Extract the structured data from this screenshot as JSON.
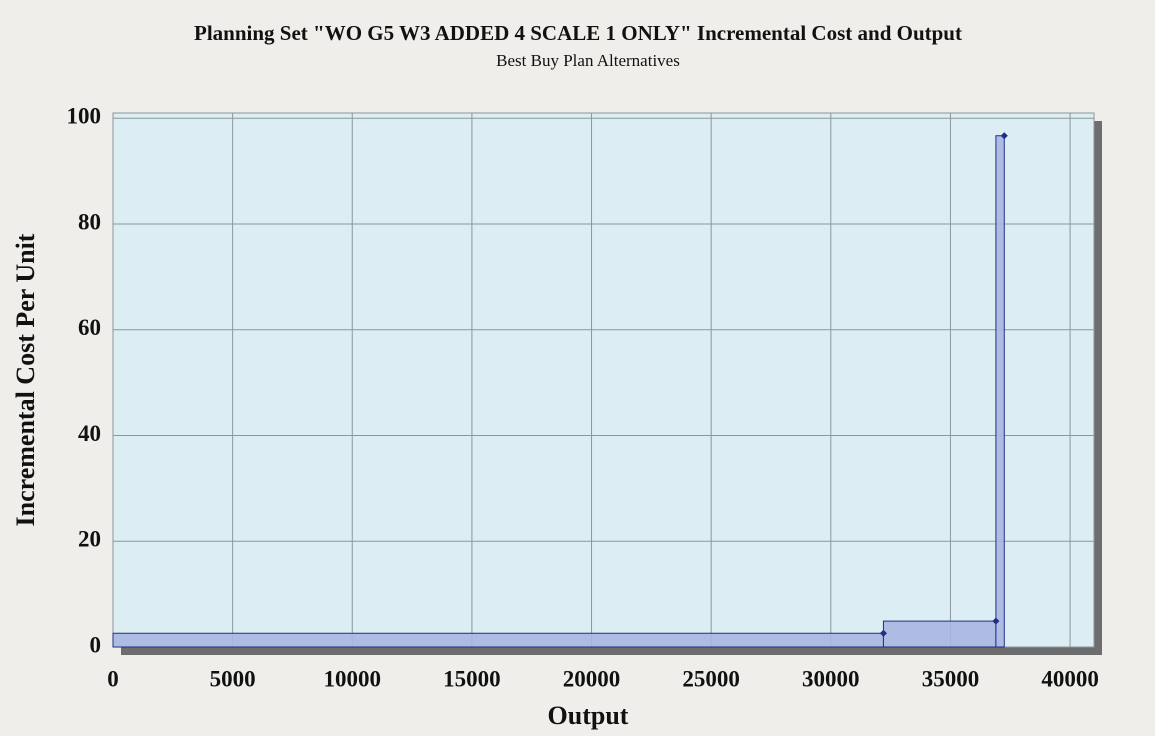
{
  "chart_data": {
    "type": "histogram",
    "title": "Planning Set \"WO G5 W3 ADDED 4 SCALE 1 ONLY\" Incremental Cost and Output",
    "subtitle": "Best Buy Plan Alternatives",
    "x_label": "Output",
    "y_label": "Incremental Cost Per Unit",
    "bins": [
      0,
      32200,
      36900,
      37250
    ],
    "values": [
      2.6,
      4.9,
      96.7
    ],
    "color": "#a8b6e2",
    "edge_color": "#1f2f86",
    "xlim": [
      0,
      41000
    ],
    "ylim": [
      0,
      101
    ],
    "xticks": [
      0,
      5000,
      10000,
      15000,
      20000,
      25000,
      30000,
      35000,
      40000
    ],
    "yticks": [
      0,
      20,
      40,
      60,
      80,
      100
    ],
    "grid": true
  }
}
